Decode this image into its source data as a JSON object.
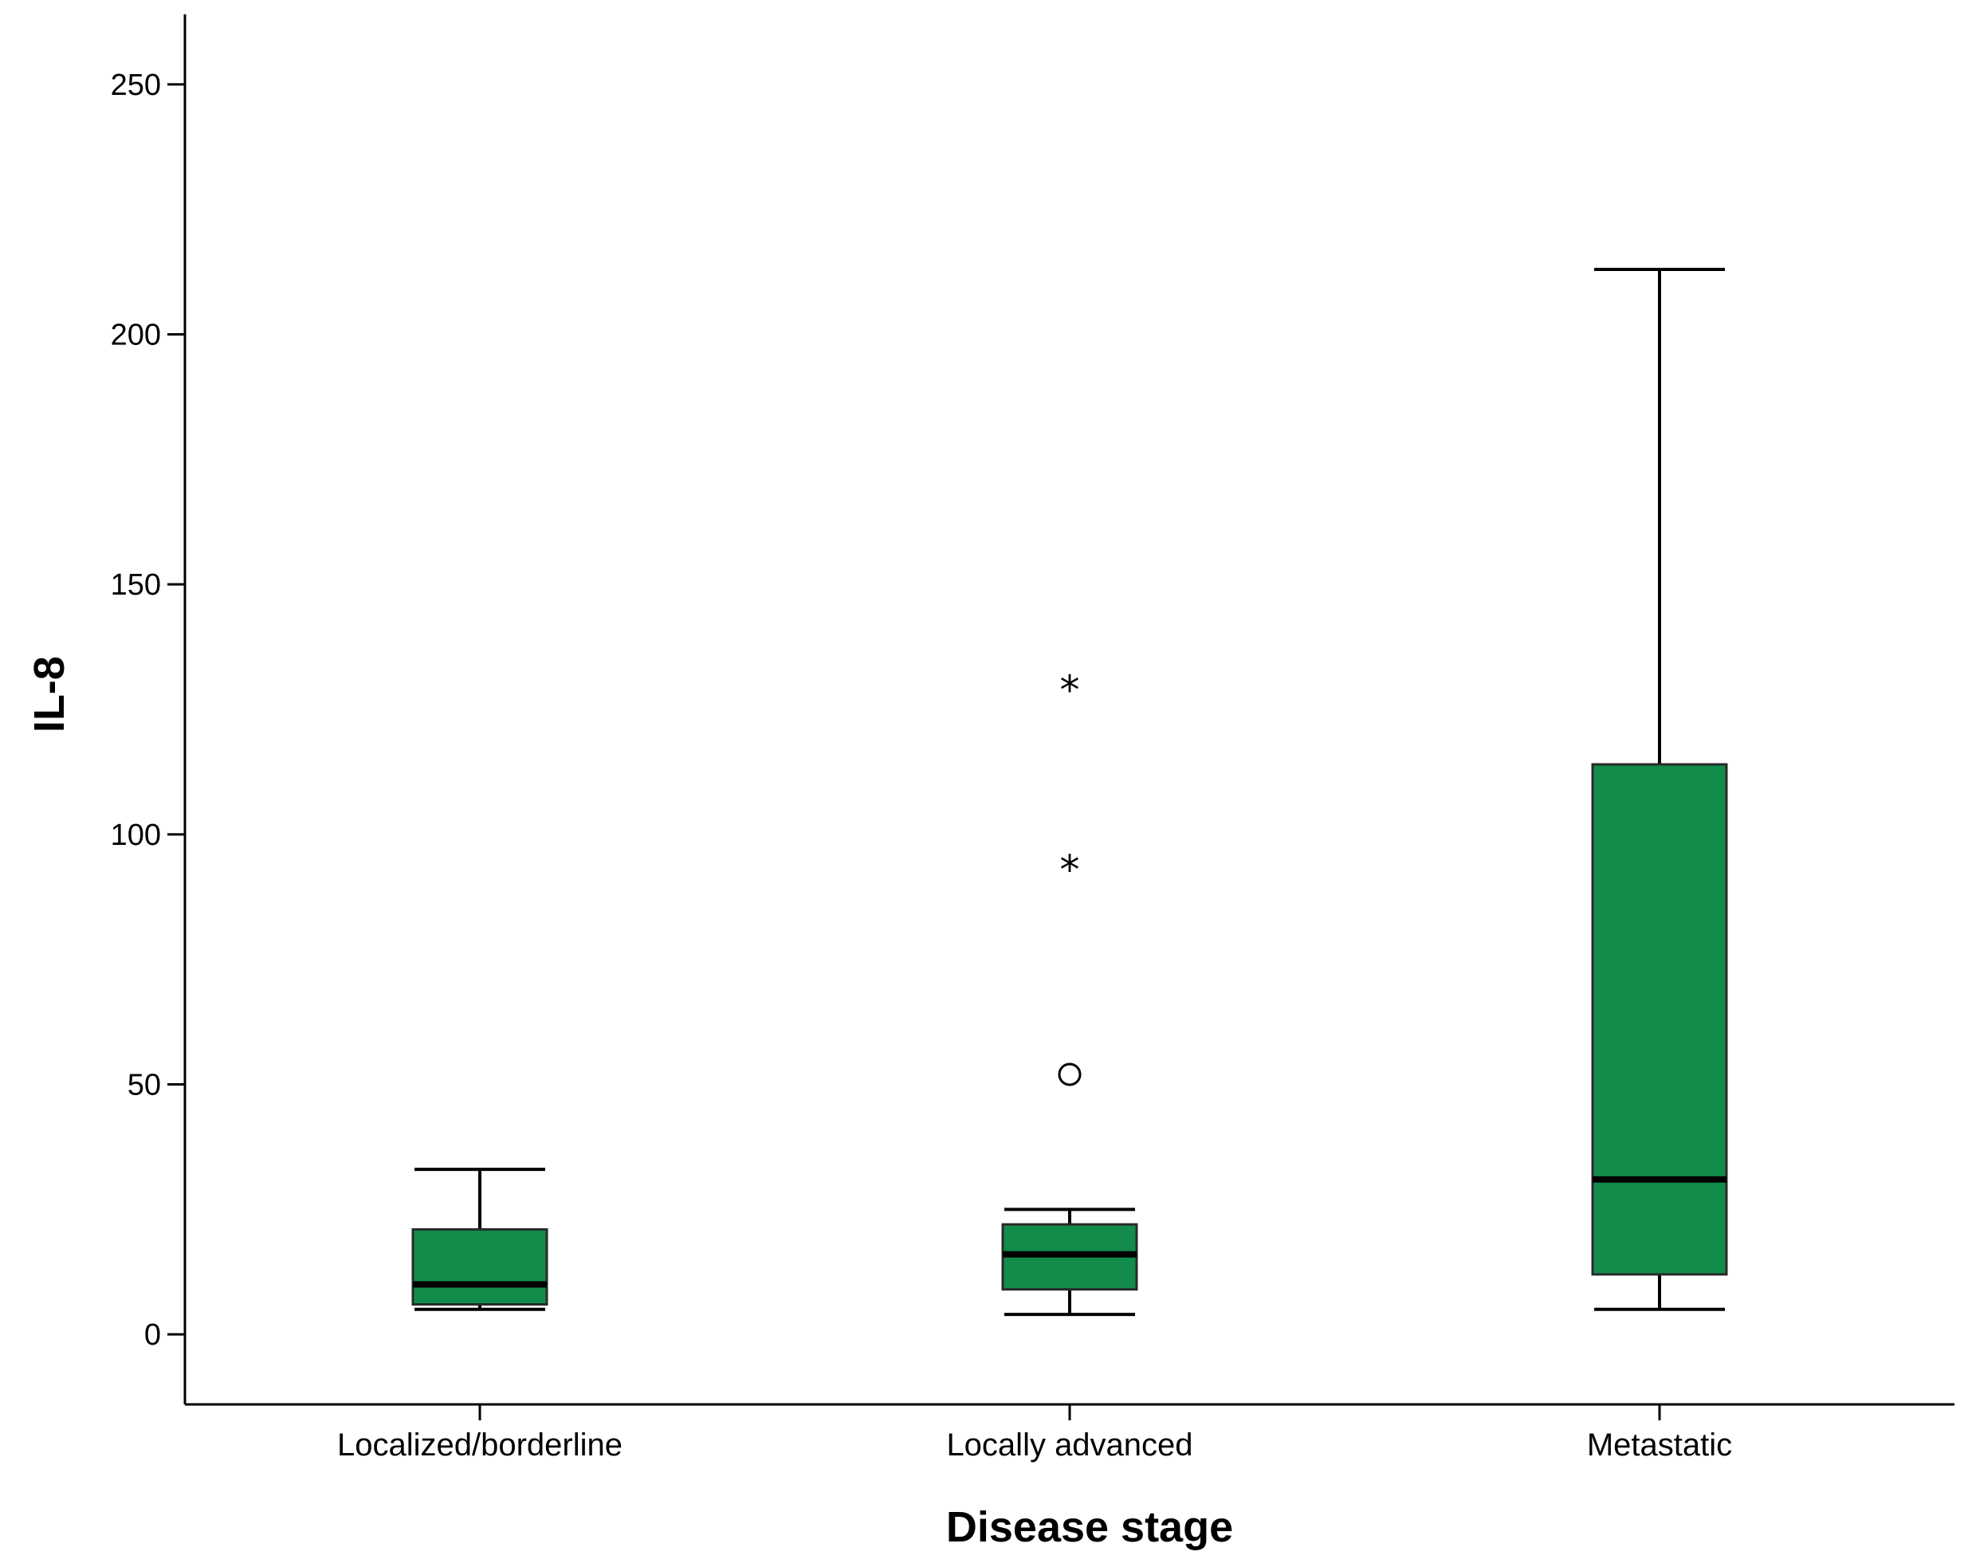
{
  "chart_data": {
    "type": "boxplot",
    "title": "",
    "xlabel": "Disease stage",
    "ylabel": "IL-8",
    "ylim": [
      -14,
      264
    ],
    "yticks": [
      0,
      50,
      100,
      150,
      200,
      250
    ],
    "categories": [
      "Localized/borderline",
      "Locally advanced",
      "Metastatic"
    ],
    "boxes": [
      {
        "category": "Localized/borderline",
        "whisker_low": 5,
        "q1": 6,
        "median": 10,
        "q3": 21,
        "whisker_high": 33,
        "outliers": []
      },
      {
        "category": "Locally advanced",
        "whisker_low": 4,
        "q1": 9,
        "median": 16,
        "q3": 22,
        "whisker_high": 25,
        "outliers": [
          {
            "value": 52,
            "marker": "o"
          },
          {
            "value": 93,
            "marker": "*"
          },
          {
            "value": 129,
            "marker": "*"
          }
        ]
      },
      {
        "category": "Metastatic",
        "whisker_low": 5,
        "q1": 12,
        "median": 31,
        "q3": 114,
        "whisker_high": 213,
        "outliers": []
      }
    ],
    "box_color": "#128c4a",
    "line_color": "#000000"
  }
}
